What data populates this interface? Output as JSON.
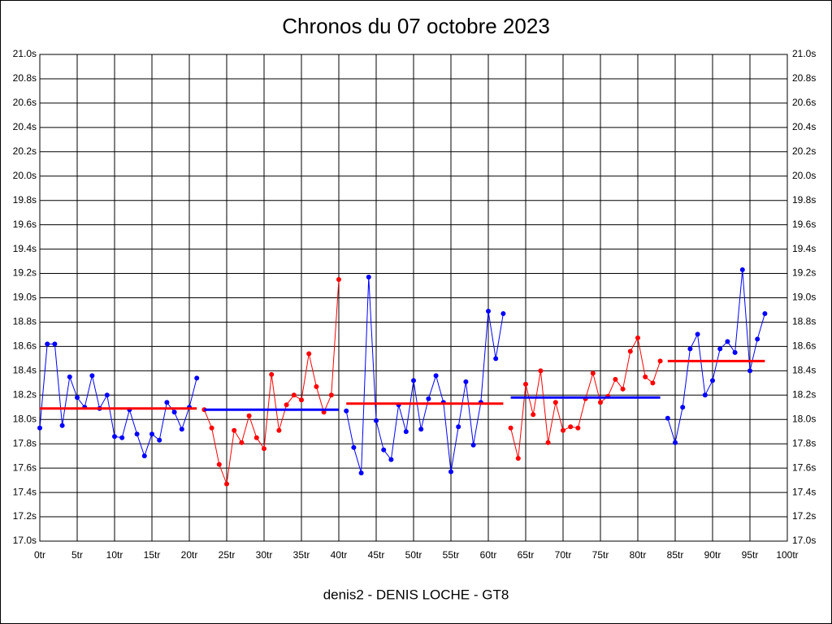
{
  "chart_data": {
    "type": "line",
    "title": "Chronos du 07 octobre 2023",
    "footer": "denis2 - DENIS LOCHE - GT8",
    "xlim": [
      0,
      100
    ],
    "ylim": [
      17.0,
      21.0
    ],
    "grid": true,
    "xticks": [
      {
        "value": 0,
        "label": "0tr"
      },
      {
        "value": 5,
        "label": "5tr"
      },
      {
        "value": 10,
        "label": "10tr"
      },
      {
        "value": 15,
        "label": "15tr"
      },
      {
        "value": 20,
        "label": "20tr"
      },
      {
        "value": 25,
        "label": "25tr"
      },
      {
        "value": 30,
        "label": "30tr"
      },
      {
        "value": 35,
        "label": "35tr"
      },
      {
        "value": 40,
        "label": "40tr"
      },
      {
        "value": 45,
        "label": "45tr"
      },
      {
        "value": 50,
        "label": "50tr"
      },
      {
        "value": 55,
        "label": "55tr"
      },
      {
        "value": 60,
        "label": "60tr"
      },
      {
        "value": 65,
        "label": "65tr"
      },
      {
        "value": 70,
        "label": "70tr"
      },
      {
        "value": 75,
        "label": "75tr"
      },
      {
        "value": 80,
        "label": "80tr"
      },
      {
        "value": 85,
        "label": "85tr"
      },
      {
        "value": 90,
        "label": "90tr"
      },
      {
        "value": 95,
        "label": "95tr"
      },
      {
        "value": 100,
        "label": "100tr"
      }
    ],
    "yticks": [
      {
        "value": 17.0,
        "label": "17.0s"
      },
      {
        "value": 17.2,
        "label": "17.2s"
      },
      {
        "value": 17.4,
        "label": "17.4s"
      },
      {
        "value": 17.6,
        "label": "17.6s"
      },
      {
        "value": 17.8,
        "label": "17.8s"
      },
      {
        "value": 18.0,
        "label": "18.0s"
      },
      {
        "value": 18.2,
        "label": "18.2s"
      },
      {
        "value": 18.4,
        "label": "18.4s"
      },
      {
        "value": 18.6,
        "label": "18.6s"
      },
      {
        "value": 18.8,
        "label": "18.8s"
      },
      {
        "value": 19.0,
        "label": "19.0s"
      },
      {
        "value": 19.2,
        "label": "19.2s"
      },
      {
        "value": 19.4,
        "label": "19.4s"
      },
      {
        "value": 19.6,
        "label": "19.6s"
      },
      {
        "value": 19.8,
        "label": "19.8s"
      },
      {
        "value": 20.0,
        "label": "20.0s"
      },
      {
        "value": 20.2,
        "label": "20.2s"
      },
      {
        "value": 20.4,
        "label": "20.4s"
      },
      {
        "value": 20.6,
        "label": "20.6s"
      },
      {
        "value": 20.8,
        "label": "20.8s"
      },
      {
        "value": 21.0,
        "label": "21.0s"
      }
    ],
    "series": [
      {
        "color": "#0000ff",
        "x": [
          0,
          1,
          2,
          3,
          4,
          5,
          6,
          7,
          8,
          9,
          10,
          11,
          12,
          13,
          14,
          15,
          16,
          17,
          18,
          19,
          20,
          21
        ],
        "values": [
          17.93,
          18.62,
          18.62,
          17.95,
          18.35,
          18.18,
          18.1,
          18.36,
          18.09,
          18.2,
          17.86,
          17.85,
          18.08,
          17.88,
          17.7,
          17.88,
          17.83,
          18.14,
          18.06,
          17.92,
          18.1,
          18.34
        ]
      },
      {
        "color": "#ff0000",
        "x": [
          22,
          23,
          24,
          25,
          26,
          27,
          28,
          29,
          30,
          31,
          32,
          33,
          34,
          35,
          36,
          37,
          38,
          39,
          40
        ],
        "values": [
          18.08,
          17.93,
          17.63,
          17.47,
          17.91,
          17.81,
          18.03,
          17.85,
          17.76,
          18.37,
          17.91,
          18.12,
          18.2,
          18.16,
          18.54,
          18.27,
          18.06,
          18.2,
          19.15
        ]
      },
      {
        "color": "#0000ff",
        "x": [
          41,
          42,
          43,
          44,
          45,
          46,
          47,
          48,
          49,
          50,
          51,
          52,
          53,
          54,
          55,
          56,
          57,
          58,
          59,
          60,
          61,
          62
        ],
        "values": [
          18.07,
          17.77,
          17.56,
          19.17,
          17.99,
          17.75,
          17.67,
          18.12,
          17.9,
          18.32,
          17.92,
          18.17,
          18.36,
          18.14,
          17.57,
          17.94,
          18.31,
          17.79,
          18.14,
          18.89,
          18.5,
          18.87
        ]
      },
      {
        "color": "#ff0000",
        "x": [
          63,
          64,
          65,
          66,
          67,
          68,
          69,
          70,
          71,
          72,
          73,
          74,
          75,
          76,
          77,
          78,
          79,
          80,
          81,
          82,
          83
        ],
        "values": [
          17.93,
          17.68,
          18.29,
          18.04,
          18.4,
          17.81,
          18.14,
          17.91,
          17.94,
          17.93,
          18.17,
          18.38,
          18.14,
          18.19,
          18.33,
          18.25,
          18.56,
          18.67,
          18.35,
          18.3,
          18.48
        ]
      },
      {
        "color": "#0000ff",
        "x": [
          84,
          85,
          86,
          87,
          88,
          89,
          90,
          91,
          92,
          93,
          94,
          95,
          96,
          97
        ],
        "values": [
          18.01,
          17.81,
          18.1,
          18.58,
          18.7,
          18.2,
          18.32,
          18.58,
          18.64,
          18.55,
          19.23,
          18.4,
          18.66,
          18.87
        ]
      }
    ],
    "means": [
      {
        "color": "#ff0000",
        "x": [
          0,
          21
        ],
        "value": 18.09
      },
      {
        "color": "#0000ff",
        "x": [
          22,
          40
        ],
        "value": 18.08
      },
      {
        "color": "#ff0000",
        "x": [
          41,
          62
        ],
        "value": 18.13
      },
      {
        "color": "#0000ff",
        "x": [
          63,
          83
        ],
        "value": 18.18
      },
      {
        "color": "#ff0000",
        "x": [
          84,
          97
        ],
        "value": 18.48
      }
    ]
  }
}
